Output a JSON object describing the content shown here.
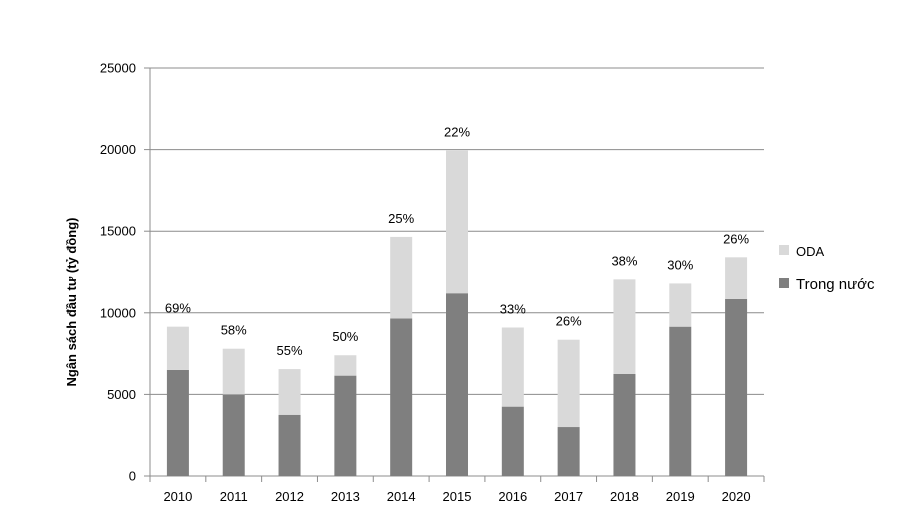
{
  "chart_data": {
    "type": "bar",
    "stacked": true,
    "categories": [
      "2010",
      "2011",
      "2012",
      "2013",
      "2014",
      "2015",
      "2016",
      "2017",
      "2018",
      "2019",
      "2020"
    ],
    "series": [
      {
        "name": "Trong nước",
        "color": "#7f7f7f",
        "values": [
          6500,
          5000,
          3750,
          6150,
          9650,
          11200,
          4250,
          3000,
          6250,
          9150,
          10850
        ]
      },
      {
        "name": "ODA",
        "color": "#d9d9d9",
        "values": [
          2650,
          2800,
          2800,
          1250,
          5000,
          8750,
          4850,
          5350,
          5800,
          2650,
          2550
        ]
      }
    ],
    "bar_labels": [
      "69%",
      "58%",
      "55%",
      "50%",
      "25%",
      "22%",
      "33%",
      "26%",
      "38%",
      "30%",
      "26%"
    ],
    "ylabel": "Ngân sách đầu tư (tỷ đồng)",
    "xlabel": "",
    "ylim": [
      0,
      25000
    ],
    "yticks": [
      0,
      5000,
      10000,
      15000,
      20000,
      25000
    ],
    "grid": true,
    "legend_position": "right",
    "legend_order": [
      "ODA",
      "Trong nước"
    ]
  }
}
